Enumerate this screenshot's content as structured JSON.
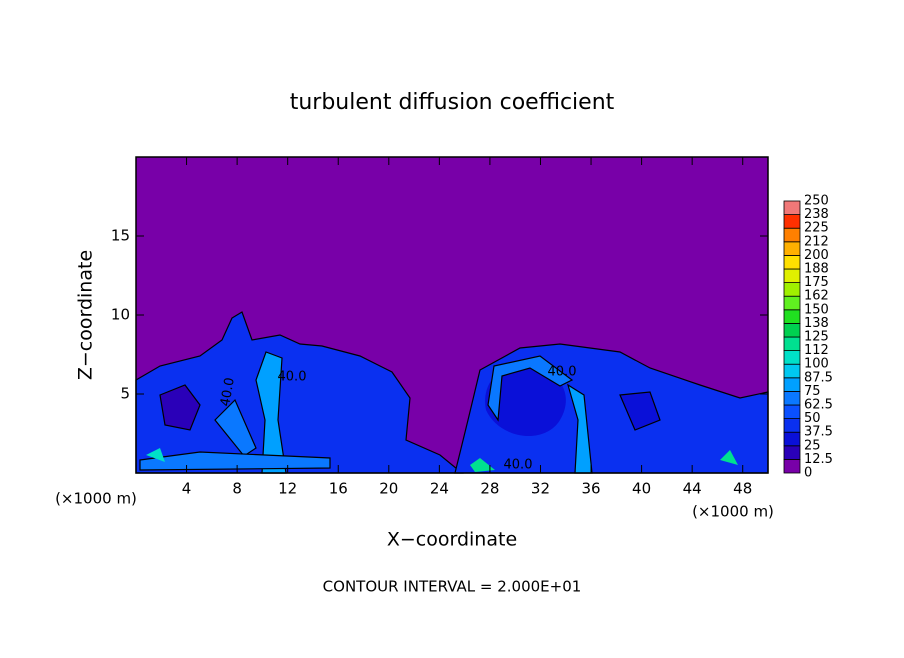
{
  "chart_data": {
    "type": "contour",
    "title": "turbulent diffusion coefficient",
    "x_label": "X−coordinate",
    "y_label": "Z−coordinate",
    "unit_label": "(×1000 m)",
    "footer": "CONTOUR INTERVAL = 2.000E+01",
    "xlim": [
      0,
      50
    ],
    "xticks": [
      4,
      8,
      12,
      16,
      20,
      24,
      28,
      32,
      36,
      40,
      44,
      48
    ],
    "ylim": [
      0,
      20
    ],
    "yticks": [
      5,
      10,
      15
    ],
    "colorbar": {
      "levels": [
        0,
        12.5,
        25,
        37.5,
        50,
        62.5,
        75,
        87.5,
        100,
        112,
        125,
        138,
        150,
        162,
        175,
        188,
        200,
        212,
        225,
        238,
        250
      ],
      "colors": [
        "#7800a8",
        "#2a00b8",
        "#0a10d8",
        "#0a30f0",
        "#0a50ff",
        "#0a78ff",
        "#00a0ff",
        "#00c8f0",
        "#00e0c8",
        "#00e090",
        "#00d050",
        "#20e020",
        "#60f020",
        "#a0f000",
        "#e0f000",
        "#ffe000",
        "#ffb000",
        "#ff8000",
        "#ff3000",
        "#f07878"
      ]
    },
    "contour_labels": [
      "40.0",
      "40.0",
      "40.0",
      "40.0"
    ]
  }
}
